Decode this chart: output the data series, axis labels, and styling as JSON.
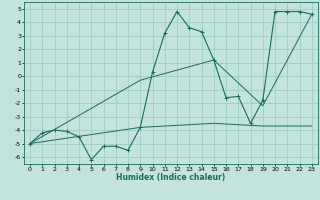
{
  "title": "",
  "xlabel": "Humidex (Indice chaleur)",
  "bg_color": "#c2e4dc",
  "grid_color": "#9ecec6",
  "line_color": "#1a6b60",
  "xlim": [
    -0.5,
    23.5
  ],
  "ylim": [
    -6.5,
    5.5
  ],
  "xticks": [
    0,
    1,
    2,
    3,
    4,
    5,
    6,
    7,
    8,
    9,
    10,
    11,
    12,
    13,
    14,
    15,
    16,
    17,
    18,
    19,
    20,
    21,
    22,
    23
  ],
  "yticks": [
    -6,
    -5,
    -4,
    -3,
    -2,
    -1,
    0,
    1,
    2,
    3,
    4,
    5
  ],
  "line1_x": [
    0,
    1,
    2,
    3,
    4,
    5,
    6,
    7,
    8,
    9,
    10,
    11,
    12,
    13,
    14,
    15,
    16,
    17,
    18,
    19,
    20,
    21,
    22,
    23
  ],
  "line1_y": [
    -5.0,
    -4.2,
    -4.0,
    -4.1,
    -4.5,
    -6.2,
    -5.2,
    -5.2,
    -5.5,
    -3.8,
    0.3,
    3.2,
    4.8,
    3.6,
    3.3,
    1.2,
    -1.6,
    -1.5,
    -3.5,
    -1.8,
    4.8,
    4.8,
    4.8,
    4.6
  ],
  "line2_x": [
    0,
    9,
    15,
    19,
    23
  ],
  "line2_y": [
    -5.0,
    -0.3,
    1.2,
    -2.2,
    4.6
  ],
  "line3_x": [
    0,
    9,
    15,
    19,
    23
  ],
  "line3_y": [
    -5.0,
    -3.8,
    -3.5,
    -3.7,
    -3.7
  ]
}
